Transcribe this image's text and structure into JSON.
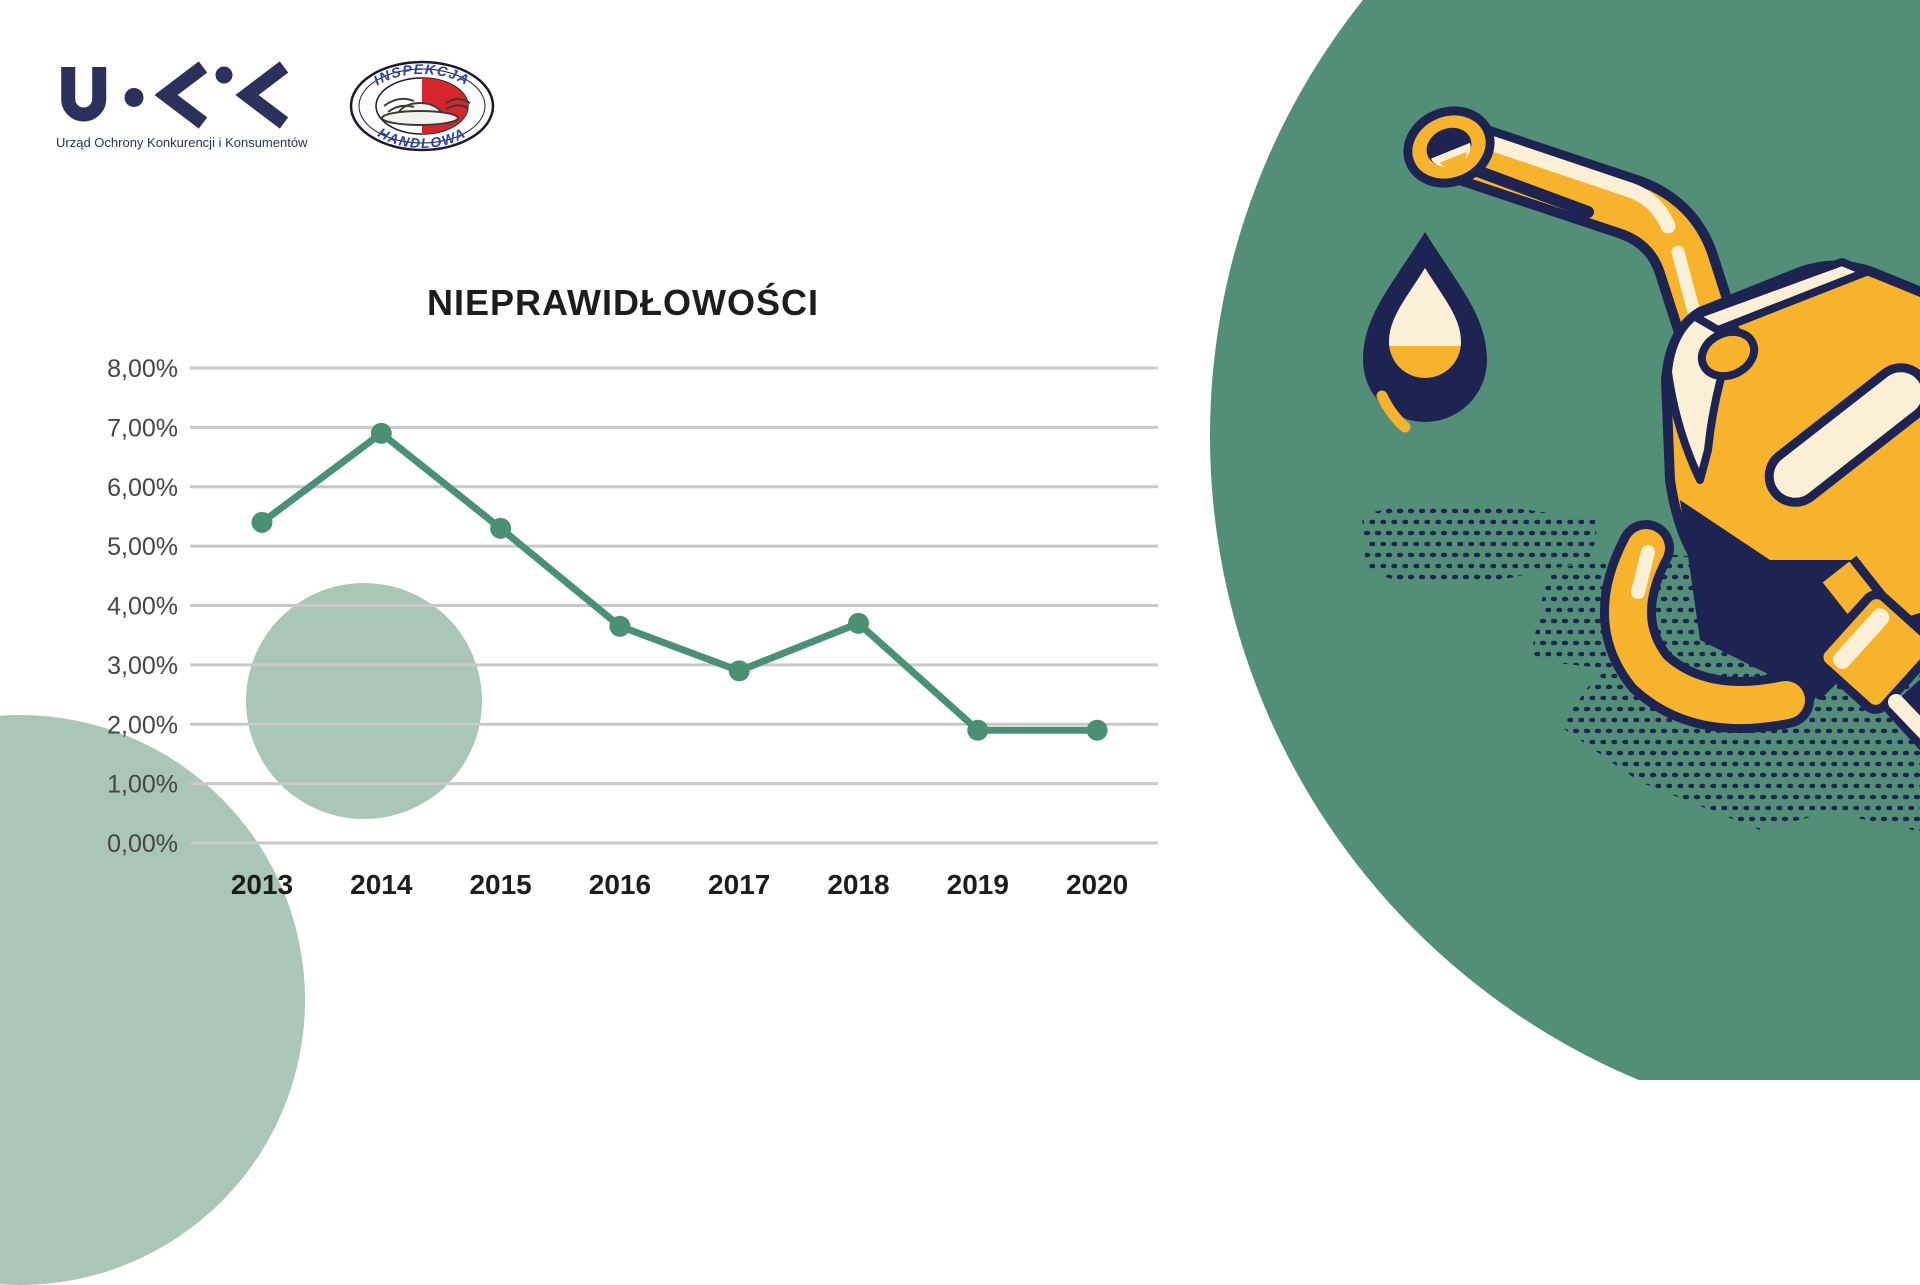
{
  "page": {
    "background": "#ffffff"
  },
  "header": {
    "uokik_logo": {
      "mark": "UOKiK",
      "caption": "Urząd Ochrony Konkurencji i Konsumentów",
      "color": "#2b305c"
    },
    "inspekcja_logo": {
      "arc_top": "INSPEKCJA",
      "arc_bottom": "HANDLOWA",
      "blue": "#2b3faf",
      "red": "#d6252b"
    }
  },
  "chart_data": {
    "type": "line",
    "title": "NIEPRAWIDŁOWOŚCI",
    "categories": [
      "2013",
      "2014",
      "2015",
      "2016",
      "2017",
      "2018",
      "2019",
      "2020"
    ],
    "series": [
      {
        "name": "Nieprawidłowości",
        "values": [
          5.4,
          6.9,
          5.3,
          3.65,
          2.9,
          3.7,
          1.9,
          1.9
        ]
      }
    ],
    "y_tick_labels": [
      "8,00%",
      "7,00%",
      "6,00%",
      "5,00%",
      "4,00%",
      "3,00%",
      "2,00%",
      "1,00%",
      "0,00%"
    ],
    "ylim": [
      0,
      8
    ],
    "grid": true,
    "legend": false,
    "line_color": "#4a9173",
    "marker": "circle",
    "gridline_color": "#c9c9c9"
  },
  "decor": {
    "light_circle_color": "#a9c6b7",
    "big_circle_color": "#538e76",
    "illustration": {
      "yellow": "#f7b32b",
      "cream": "#fbf0d5",
      "navy": "#1e2452"
    }
  }
}
